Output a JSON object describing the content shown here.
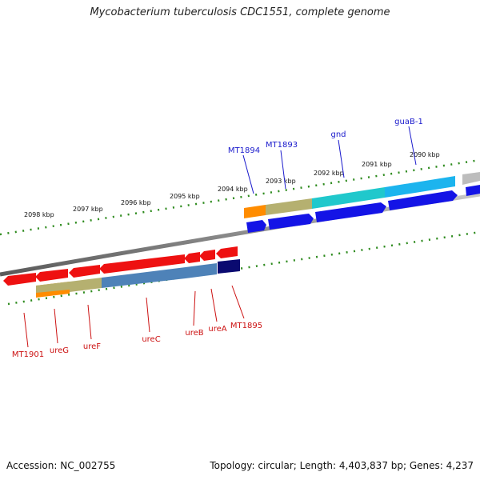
{
  "title": "Mycobacterium tuberculosis CDC1551, complete genome",
  "footer": {
    "accession": "Accession: NC_002755",
    "summary": "Topology: circular; Length: 4,403,837 bp; Genes: 4,237"
  },
  "scale_labels": [
    "2098 kbp",
    "2097 kbp",
    "2096 kbp",
    "2095 kbp",
    "2094 kbp",
    "2093 kbp",
    "2092 kbp",
    "2091 kbp",
    "2090 kbp"
  ],
  "upper_gene_labels": [
    "MT1894",
    "MT1893",
    "gnd",
    "guaB-1"
  ],
  "lower_gene_labels": [
    "MT1901",
    "ureG",
    "ureF",
    "ureC",
    "ureB",
    "ureA",
    "MT1895"
  ],
  "colors": {
    "upper_label": "#1a1acc",
    "lower_label": "#cc1111",
    "backbone": "#808080",
    "tick": "#2e8b1e",
    "cds_red": "#ee1111",
    "cds_blue": "#1414e6",
    "cds_navy": "#0a0a70"
  }
}
